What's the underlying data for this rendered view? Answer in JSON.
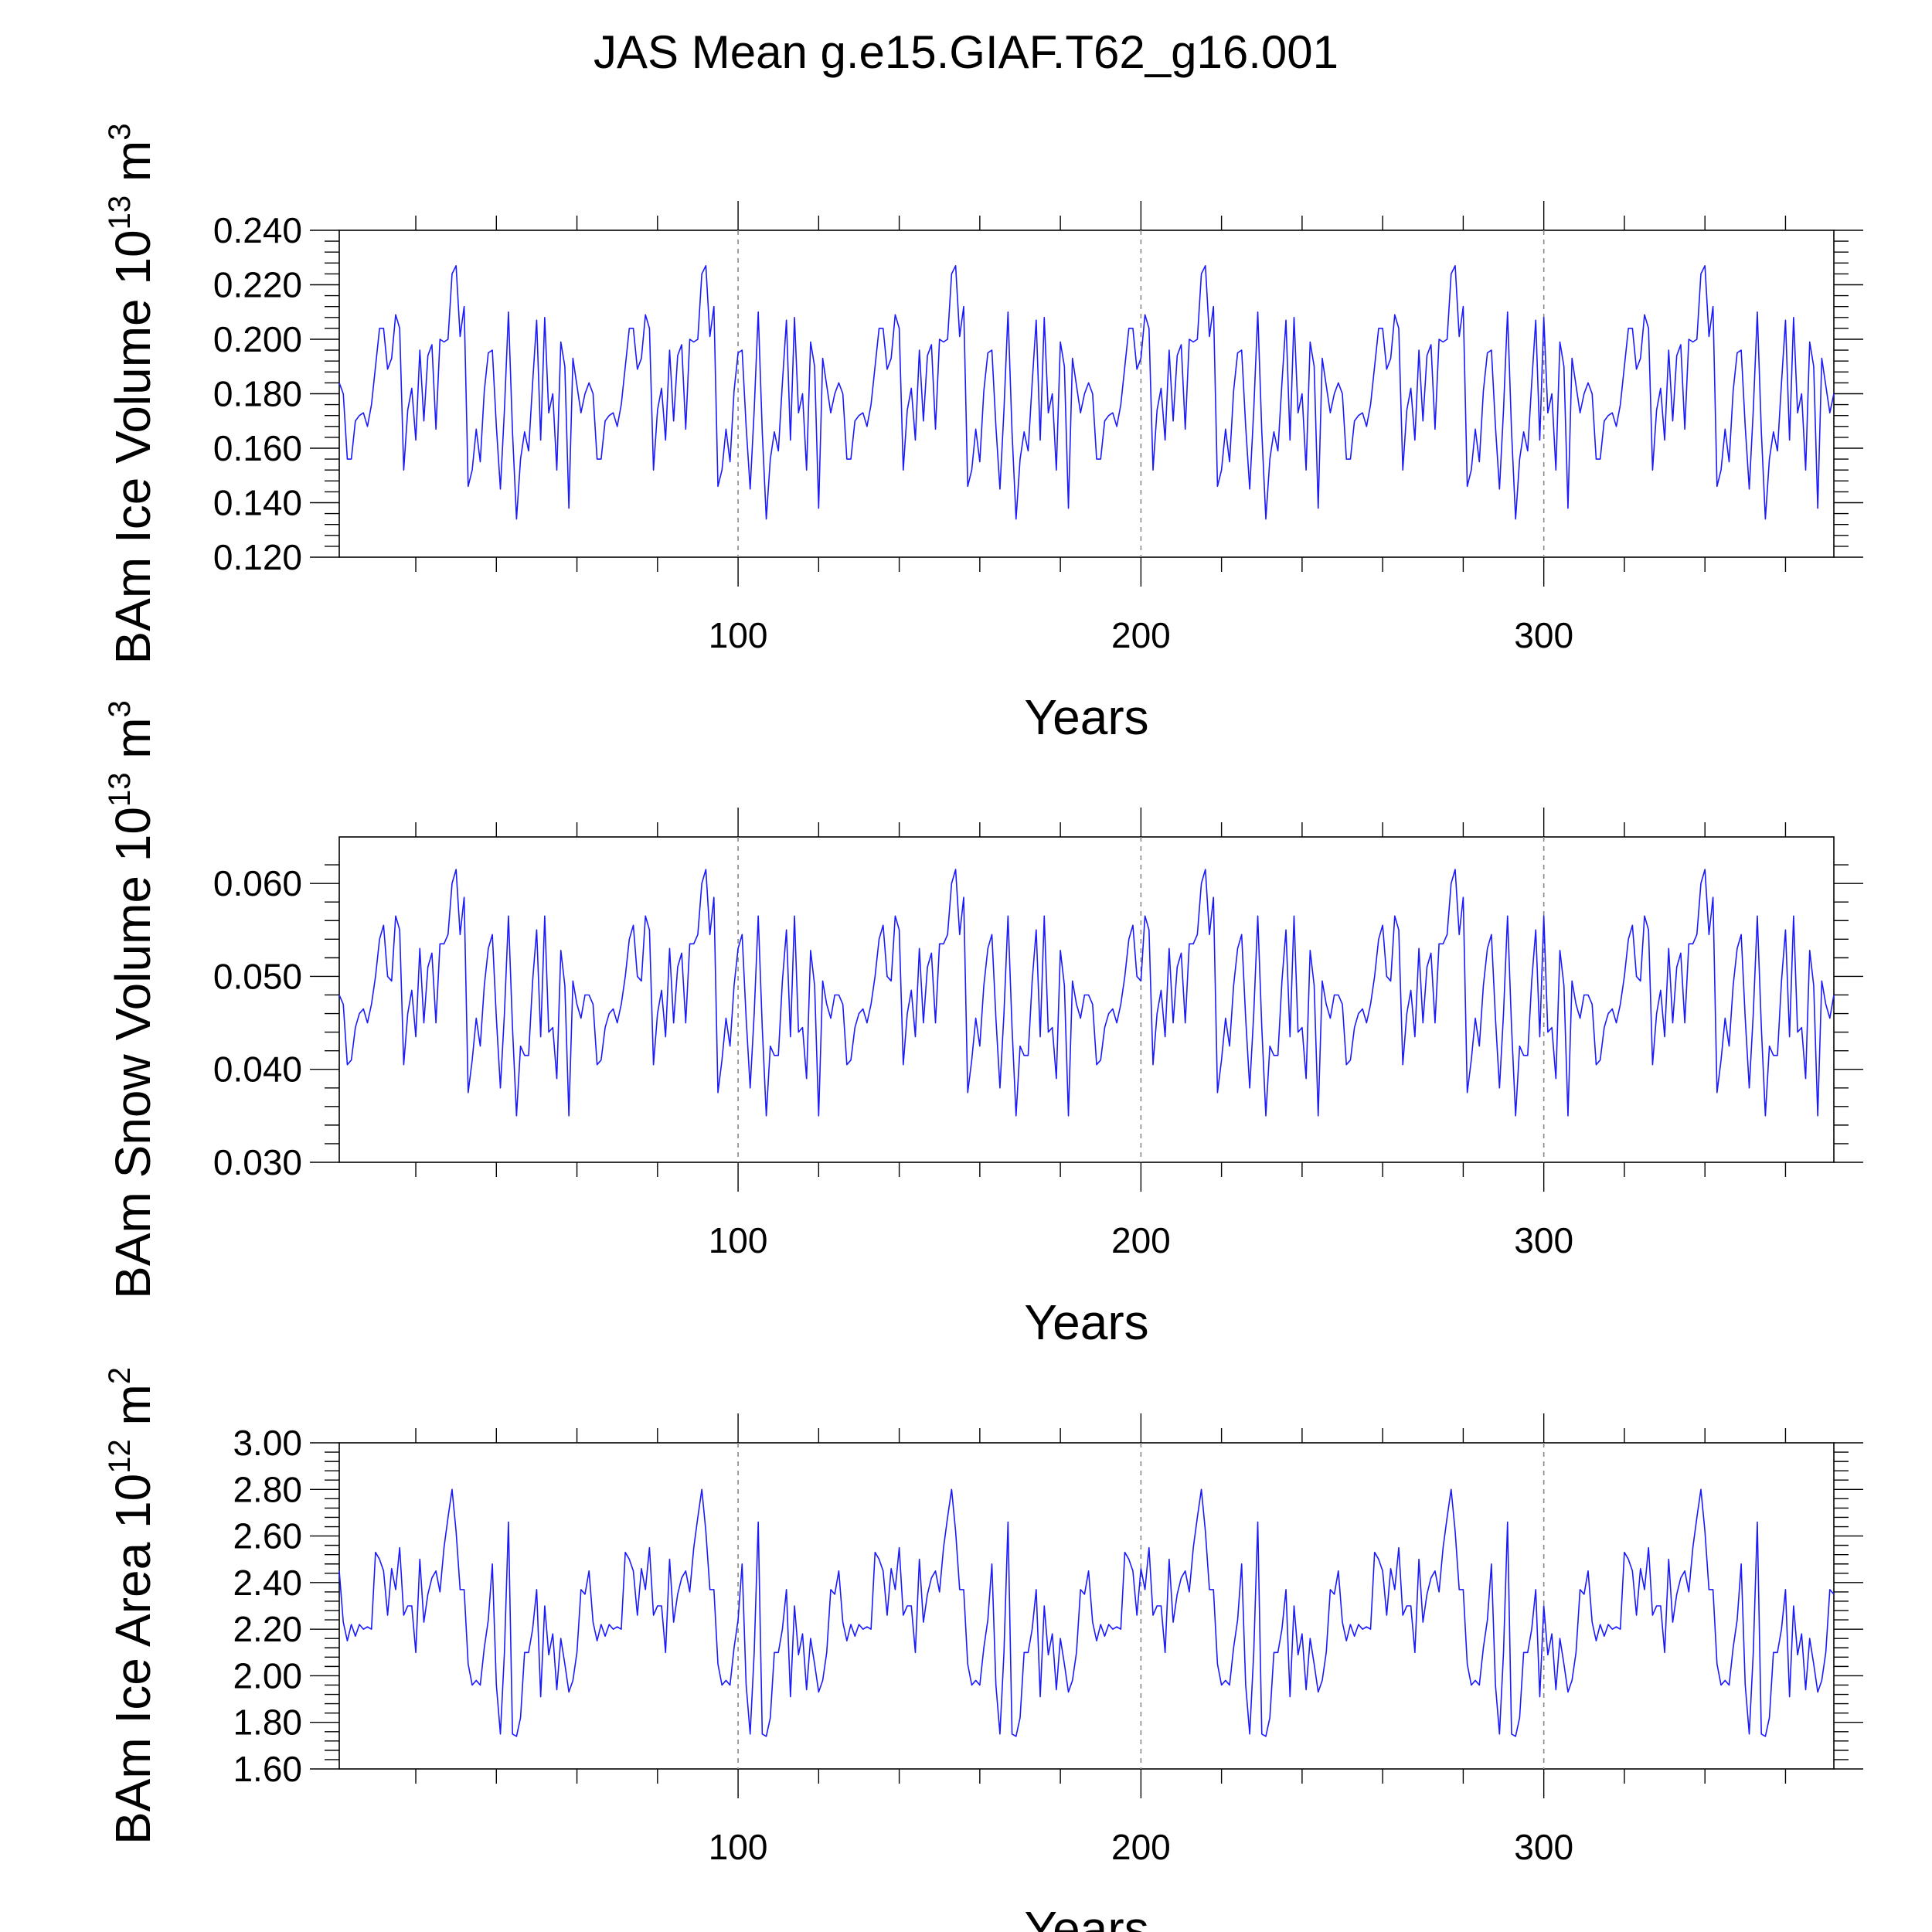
{
  "title": "JAS Mean g.e15.GIAF.T62_g16.001",
  "colors": {
    "series": "#1a1aff",
    "grid": "#8a8a8a",
    "axis": "#000000"
  },
  "chart_data": [
    {
      "type": "line",
      "xlabel": "Years",
      "ylabel": "BAm Ice Volume 10",
      "ylabel_sup": "13",
      "ylabel_unit": " m",
      "ylabel_unit_sup": "3",
      "xlim": [
        1,
        372
      ],
      "ylim": [
        0.12,
        0.24
      ],
      "xticks": [
        100,
        200,
        300
      ],
      "yticks": [
        0.12,
        0.14,
        0.16,
        0.18,
        0.2,
        0.22,
        0.24
      ],
      "ytick_labels": [
        "0.120",
        "0.140",
        "0.160",
        "0.180",
        "0.200",
        "0.220",
        "0.240"
      ],
      "grid_x": true,
      "cycle_length": 62,
      "series": [
        {
          "x_start": 1,
          "values": [
            0.184,
            0.18,
            0.156,
            0.156,
            0.17,
            0.172,
            0.173,
            0.168,
            0.176,
            0.19,
            0.204,
            0.204,
            0.189,
            0.193,
            0.209,
            0.204,
            0.152,
            0.174,
            0.182,
            0.163,
            0.196,
            0.17,
            0.194,
            0.198,
            0.167,
            0.2,
            0.199,
            0.2,
            0.224,
            0.227,
            0.201,
            0.212,
            0.146,
            0.152,
            0.167,
            0.155,
            0.181,
            0.195,
            0.196,
            0.168,
            0.145,
            0.174,
            0.21,
            0.166,
            0.134,
            0.156,
            0.166,
            0.159,
            0.184,
            0.207,
            0.163,
            0.208,
            0.173,
            0.18,
            0.152,
            0.199,
            0.19,
            0.138,
            0.193,
            0.183,
            0.173,
            0.18
          ]
        }
      ]
    },
    {
      "type": "line",
      "xlabel": "Years",
      "ylabel": "BAm Snow Volume 10",
      "ylabel_sup": "13",
      "ylabel_unit": " m",
      "ylabel_unit_sup": "3",
      "xlim": [
        1,
        372
      ],
      "ylim": [
        0.03,
        0.065
      ],
      "xticks": [
        100,
        200,
        300
      ],
      "yticks": [
        0.03,
        0.04,
        0.05,
        0.06
      ],
      "ytick_labels": [
        "0.030",
        "0.040",
        "0.050",
        "0.060"
      ],
      "grid_x": true,
      "cycle_length": 62,
      "series": [
        {
          "x_start": 1,
          "values": [
            0.048,
            0.047,
            0.0405,
            0.041,
            0.0445,
            0.046,
            0.0465,
            0.045,
            0.047,
            0.05,
            0.054,
            0.0555,
            0.05,
            0.0495,
            0.0565,
            0.055,
            0.0405,
            0.046,
            0.0485,
            0.0435,
            0.053,
            0.045,
            0.051,
            0.0525,
            0.045,
            0.0535,
            0.0535,
            0.0545,
            0.06,
            0.0615,
            0.0545,
            0.0585,
            0.0375,
            0.041,
            0.0455,
            0.0425,
            0.049,
            0.053,
            0.0545,
            0.0455,
            0.038,
            0.046,
            0.0565,
            0.0445,
            0.035,
            0.0425,
            0.0415,
            0.0415,
            0.0495,
            0.055,
            0.0435,
            0.0565,
            0.044,
            0.0445,
            0.039,
            0.0528,
            0.049,
            0.035,
            0.0495,
            0.047,
            0.0455,
            0.048
          ]
        }
      ]
    },
    {
      "type": "line",
      "xlabel": "Years",
      "ylabel": "BAm Ice Area 10",
      "ylabel_sup": "12",
      "ylabel_unit": " m",
      "ylabel_unit_sup": "2",
      "xlim": [
        1,
        372
      ],
      "ylim": [
        1.6,
        3.0
      ],
      "xticks": [
        100,
        200,
        300
      ],
      "yticks": [
        1.6,
        1.8,
        2.0,
        2.2,
        2.4,
        2.6,
        2.8,
        3.0
      ],
      "ytick_labels": [
        "1.60",
        "1.80",
        "2.00",
        "2.20",
        "2.40",
        "2.60",
        "2.80",
        "3.00"
      ],
      "grid_x": true,
      "cycle_length": 62,
      "series": [
        {
          "x_start": 1,
          "values": [
            2.45,
            2.23,
            2.15,
            2.22,
            2.17,
            2.22,
            2.2,
            2.21,
            2.2,
            2.53,
            2.5,
            2.45,
            2.26,
            2.46,
            2.37,
            2.55,
            2.26,
            2.3,
            2.3,
            2.1,
            2.5,
            2.23,
            2.35,
            2.42,
            2.45,
            2.36,
            2.55,
            2.68,
            2.8,
            2.62,
            2.37,
            2.37,
            2.05,
            1.96,
            1.98,
            1.96,
            2.12,
            2.24,
            2.48,
            1.96,
            1.75,
            2.1,
            2.66,
            1.75,
            1.74,
            1.82,
            2.1,
            2.1,
            2.2,
            2.37,
            1.91,
            2.3,
            2.09,
            2.18,
            1.94,
            2.16,
            2.05,
            1.93,
            1.98,
            2.1,
            2.37,
            2.35
          ]
        }
      ]
    }
  ]
}
